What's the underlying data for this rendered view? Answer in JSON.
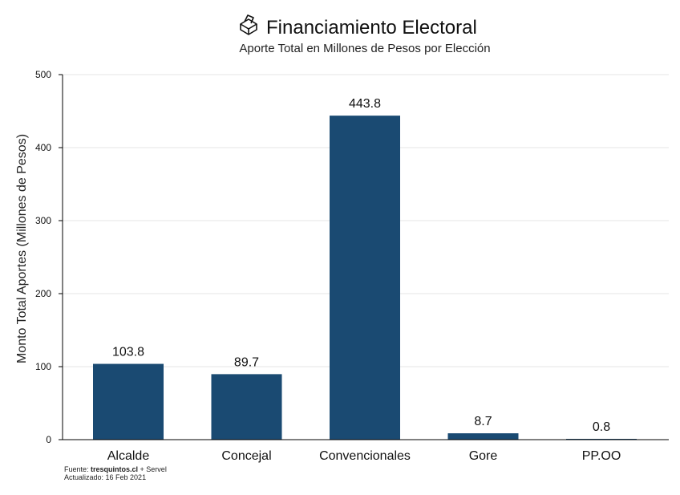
{
  "chart_data": {
    "type": "bar",
    "title": "Financiamiento Electoral",
    "subtitle": "Aporte Total en Millones de Pesos por Elección",
    "title_icon": "ballot-box-icon",
    "xlabel": "",
    "ylabel": "Monto Total Aportes (Millones de Pesos)",
    "categories": [
      "Alcalde",
      "Concejal",
      "Convencionales",
      "Gore",
      "PP.OO"
    ],
    "values": [
      103.8,
      89.7,
      443.8,
      8.7,
      0.8
    ],
    "value_labels": [
      "103.8",
      "89.7",
      "443.8",
      "8.7",
      "0.8"
    ],
    "ylim": [
      0,
      500
    ],
    "yticks": [
      0,
      100,
      200,
      300,
      400,
      500
    ],
    "grid": true,
    "bar_color": "#1a4a72",
    "legend": "none"
  },
  "footer": {
    "source_prefix": "Fuente: ",
    "source_bold": "tresquintos.cl",
    "source_suffix": " + Servel",
    "updated": "Actualizado: 16 Feb 2021"
  }
}
